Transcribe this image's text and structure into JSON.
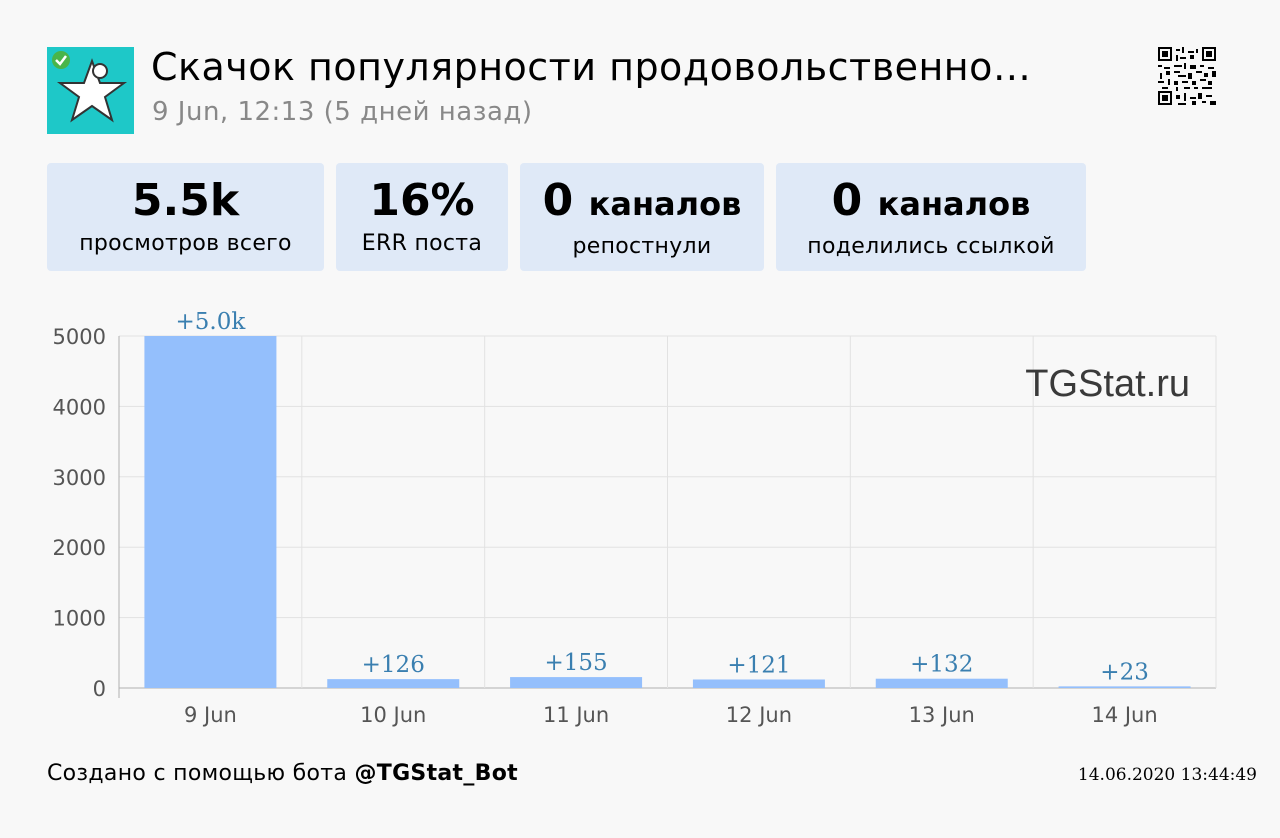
{
  "header": {
    "title": "Скачок популярности продовольственно…",
    "subtitle": "9 Jun, 12:13 (5 дней назад)"
  },
  "stats": [
    {
      "value": "5.5k",
      "unit": "",
      "caption": "просмотров всего"
    },
    {
      "value": "16%",
      "unit": "",
      "caption": "ERR поста"
    },
    {
      "value": "0",
      "unit": "каналов",
      "caption": "репостнули"
    },
    {
      "value": "0",
      "unit": "каналов",
      "caption": "поделились ссылкой"
    }
  ],
  "chart_data": {
    "type": "bar",
    "categories": [
      "9 Jun",
      "10 Jun",
      "11 Jun",
      "12 Jun",
      "13 Jun",
      "14 Jun"
    ],
    "values": [
      5000,
      126,
      155,
      121,
      132,
      23
    ],
    "data_labels": [
      "+5.0k",
      "+126",
      "+155",
      "+121",
      "+132",
      "+23"
    ],
    "yticks": [
      0,
      1000,
      2000,
      3000,
      4000,
      5000
    ],
    "ylim": [
      0,
      5000
    ],
    "grid": true,
    "bar_color": "#94bffc",
    "label_color": "#3a7fb0",
    "watermark": "TGStat.ru"
  },
  "footer": {
    "prefix": "Создано с помощью бота ",
    "bot": "@TGStat_Bot",
    "timestamp": "14.06.2020 13:44:49"
  },
  "colors": {
    "avatar_bg": "#1ec8c8",
    "stat_bg": "#dfe9f7"
  }
}
